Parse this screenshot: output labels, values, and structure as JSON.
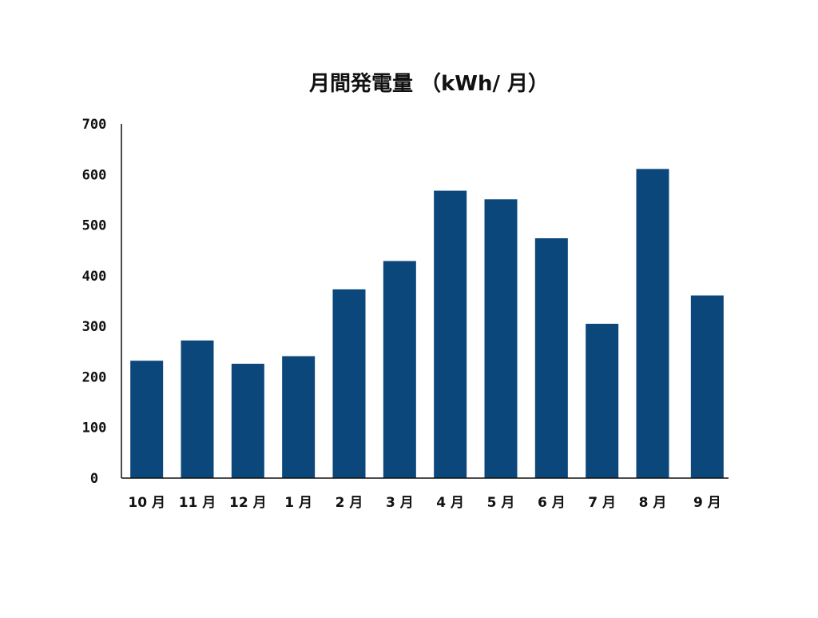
{
  "chart_data": {
    "type": "bar",
    "title": "月間発電量 （kWh/ 月）",
    "xlabel": "",
    "ylabel": "",
    "categories": [
      "10 月",
      "11 月",
      "12 月",
      "1 月",
      "2 月",
      "3 月",
      "4 月",
      "5 月",
      "6 月",
      "7 月",
      "8 月",
      "9 月"
    ],
    "values": [
      232,
      272,
      226,
      241,
      373,
      429,
      568,
      551,
      474,
      305,
      611,
      361
    ],
    "ylim": [
      0,
      700
    ],
    "yticks": [
      "0",
      "100",
      "200",
      "300",
      "400",
      "500",
      "600",
      "700"
    ],
    "grid": false,
    "legend": "none",
    "bar_color": "#0b477b"
  }
}
